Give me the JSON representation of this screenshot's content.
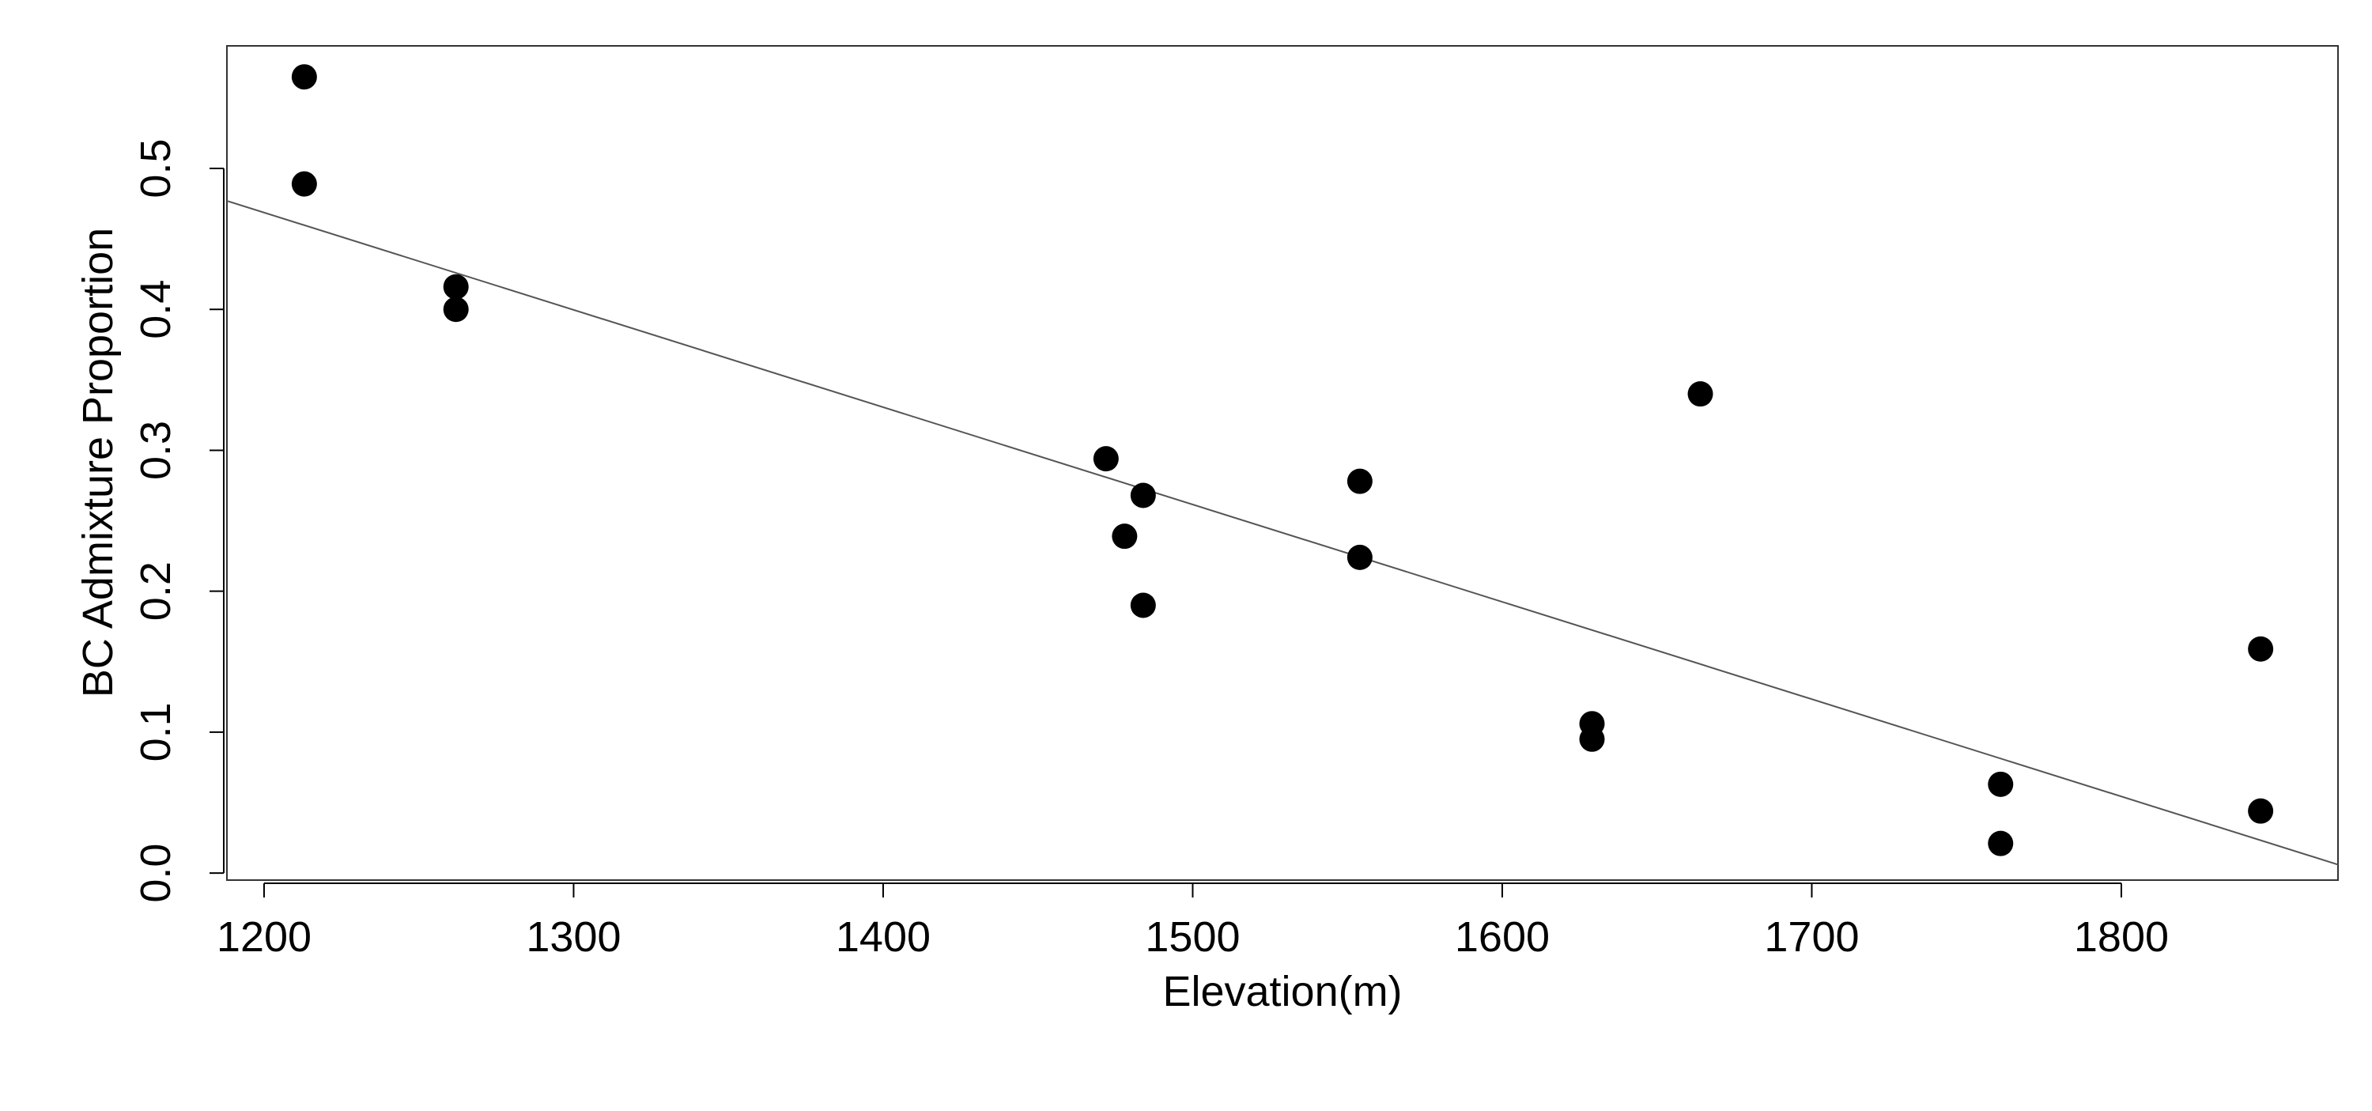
{
  "chart_data": {
    "type": "scatter",
    "title": "",
    "xlabel": "Elevation(m)",
    "ylabel": "BC Admixture Proportion",
    "xlim": [
      1188,
      1870
    ],
    "ylim": [
      -0.005,
      0.587
    ],
    "x_ticks": [
      1200,
      1300,
      1400,
      1500,
      1600,
      1700,
      1800
    ],
    "x_tick_labels": [
      "1200",
      "1300",
      "1400",
      "1500",
      "1600",
      "1700",
      "1800"
    ],
    "y_ticks": [
      0.0,
      0.1,
      0.2,
      0.3,
      0.4,
      0.5
    ],
    "y_tick_labels": [
      "0.0",
      "0.1",
      "0.2",
      "0.3",
      "0.4",
      "0.5"
    ],
    "grid": false,
    "legend": "none",
    "colors": {
      "points": "#000000",
      "line": "#555555",
      "axes": "#000000"
    },
    "series": [
      {
        "x": [
          1213,
          1213,
          1262,
          1262,
          1472,
          1478,
          1484,
          1484,
          1554,
          1554,
          1629,
          1629,
          1664,
          1761,
          1761,
          1845,
          1845
        ],
        "y": [
          0.565,
          0.489,
          0.416,
          0.4,
          0.294,
          0.239,
          0.268,
          0.19,
          0.278,
          0.224,
          0.106,
          0.095,
          0.34,
          0.063,
          0.021,
          0.159,
          0.044
        ]
      }
    ],
    "fit_line": {
      "x": [
        1188,
        1870
      ],
      "y": [
        0.477,
        0.006
      ]
    }
  }
}
